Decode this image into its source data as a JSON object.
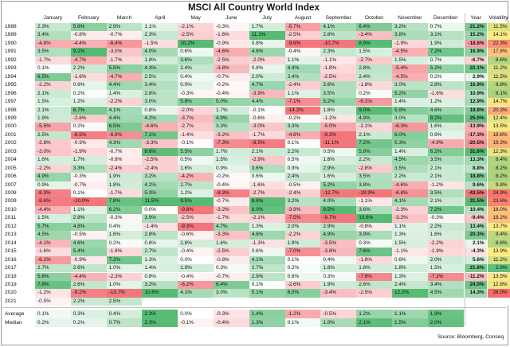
{
  "chart_data": {
    "type": "table",
    "title": "MSCI All Country World Index",
    "source": "Source: Bloomberg, Conseq",
    "month_columns": [
      "January",
      "February",
      "March",
      "April",
      "May",
      "June",
      "July",
      "August",
      "September",
      "October",
      "November",
      "December"
    ],
    "year_column": "Year",
    "volatility_column": "Volatility",
    "rows": [
      {
        "year": "1988",
        "months": [
          "2.3%",
          "5.6%",
          "2.9%",
          "1.1%",
          "-2.1%",
          "-0.3%",
          "1.7%",
          "-5.7%",
          "4.1%",
          "6.4%",
          "3.2%",
          "0.7%"
        ],
        "total": "21.2%",
        "vol": "11.5%"
      },
      {
        "year": "1989",
        "months": [
          "3.4%",
          "-0.8%",
          "-0.7%",
          "2.3%",
          "-2.5%",
          "-1.6%",
          "11.1%",
          "-2.5%",
          "2.8%",
          "-3.4%",
          "3.8%",
          "3.1%"
        ],
        "total": "15.2%",
        "vol": "14.1%"
      },
      {
        "year": "1990",
        "months": [
          "-4.8%",
          "-4.4%",
          "-6.4%",
          "-1.5%",
          "10.2%",
          "-0.9%",
          "0.8%",
          "-9.6%",
          "-10.7%",
          "8.9%",
          "-1.9%",
          "1.9%"
        ],
        "total": "-18.6%",
        "vol": "22.3%"
      },
      {
        "year": "1991",
        "months": [
          "3.5%",
          "9.2%",
          "-3.0%",
          "4.0%",
          "0.6%",
          "-4.6%",
          "4.6%",
          "-0.4%",
          "2.3%",
          "1.5%",
          "-4.5%",
          "7.2%"
        ],
        "total": "16.9%",
        "vol": "17.8%"
      },
      {
        "year": "1992",
        "months": [
          "-1.7%",
          "-4.7%",
          "-1.7%",
          "1.8%",
          "3.6%",
          "-2.5%",
          "-2.0%",
          "1.1%",
          "-1.1%",
          "-2.7%",
          "1.5%",
          "0.7%"
        ],
        "total": "-6.7%",
        "vol": "8.6%"
      },
      {
        "year": "1993",
        "months": [
          "0.1%",
          "2.2%",
          "5.5%",
          "4.3%",
          "2.4%",
          "-3.8%",
          "0.8%",
          "4.4%",
          "-1.8%",
          "2.8%",
          "-5.4%",
          "5.2%"
        ],
        "total": "22.1%",
        "vol": "11.2%"
      },
      {
        "year": "1994",
        "months": [
          "6.5%",
          "-1.6%",
          "-4.7%",
          "2.5%",
          "0.4%",
          "-0.7%",
          "2.0%",
          "3.4%",
          "-2.5%",
          "2.4%",
          "-4.5%",
          "0.2%"
        ],
        "total": "2.9%",
        "vol": "11.5%"
      },
      {
        "year": "1995",
        "months": [
          "-2.2%",
          "0.9%",
          "4.4%",
          "3.4%",
          "0.9%",
          "-0.2%",
          "4.7%",
          "-2.4%",
          "3.6%",
          "-1.8%",
          "3.0%",
          "2.8%"
        ],
        "total": "16.9%",
        "vol": "8.8%"
      },
      {
        "year": "1996",
        "months": [
          "2.1%",
          "0.2%",
          "1.4%",
          "2.8%",
          "-0.3%",
          "-0.4%",
          "-3.9%",
          "1.1%",
          "3.5%",
          "0.2%",
          "5.2%",
          "-1.6%"
        ],
        "total": "10.9%",
        "vol": "8.1%"
      },
      {
        "year": "1997",
        "months": [
          "1.5%",
          "1.2%",
          "-2.2%",
          "3.0%",
          "5.8%",
          "5.0%",
          "4.4%",
          "-7.1%",
          "5.2%",
          "-6.1%",
          "1.4%",
          "1.2%"
        ],
        "total": "12.9%",
        "vol": "14.7%"
      },
      {
        "year": "1998",
        "months": [
          "2.1%",
          "6.7%",
          "4.1%",
          "0.8%",
          "-2.0%",
          "1.7%",
          "-0.1%",
          "-14.2%",
          "1.8%",
          "9.0%",
          "5.9%",
          "4.6%"
        ],
        "total": "19.8%",
        "vol": "20.3%"
      },
      {
        "year": "1999",
        "months": [
          "1.9%",
          "-2.6%",
          "4.4%",
          "4.2%",
          "-3.7%",
          "4.9%",
          "-0.6%",
          "-0.2%",
          "-1.2%",
          "4.9%",
          "3.0%",
          "8.2%"
        ],
        "total": "25.0%",
        "vol": "12.4%"
      },
      {
        "year": "2000",
        "months": [
          "-5.5%",
          "0.2%",
          "6.5%",
          "-4.6%",
          "-2.7%",
          "3.3%",
          "-3.0%",
          "3.3%",
          "-5.0%",
          "-2.1%",
          "-6.3%",
          "1.6%"
        ],
        "total": "-13.9%",
        "vol": "13.5%"
      },
      {
        "year": "2001",
        "months": [
          "2.5%",
          "-8.5%",
          "-6.9%",
          "7.1%",
          "-1.4%",
          "-3.2%",
          "-1.7%",
          "-4.8%",
          "-9.3%",
          "2.1%",
          "6.0%",
          "0.9%"
        ],
        "total": "-17.3%",
        "vol": "18.6%"
      },
      {
        "year": "2002",
        "months": [
          "-2.8%",
          "-0.9%",
          "4.3%",
          "-3.3%",
          "-0.1%",
          "-7.3%",
          "-8.5%",
          "0.1%",
          "-11.1%",
          "7.2%",
          "5.3%",
          "-4.9%"
        ],
        "total": "-20.5%",
        "vol": "19.3%"
      },
      {
        "year": "2003",
        "months": [
          "-3.0%",
          "-1.9%",
          "-0.7%",
          "8.6%",
          "5.5%",
          "1.7%",
          "2.1%",
          "2.2%",
          "0.5%",
          "5.9%",
          "1.4%",
          "6.2%"
        ],
        "total": "31.6%",
        "vol": "12.3%"
      },
      {
        "year": "2004",
        "months": [
          "1.6%",
          "1.7%",
          "-0.8%",
          "-2.5%",
          "0.5%",
          "1.5%",
          "-2.9%",
          "0.5%",
          "1.6%",
          "2.2%",
          "4.5%",
          "3.5%"
        ],
        "total": "13.3%",
        "vol": "8.4%"
      },
      {
        "year": "2005",
        "months": [
          "-2.2%",
          "3.3%",
          "-2.4%",
          "-2.4%",
          "1.6%",
          "0.9%",
          "3.6%",
          "0.9%",
          "2.9%",
          "-2.8%",
          "3.5%",
          "2.1%"
        ],
        "total": "8.8%",
        "vol": "8.2%"
      },
      {
        "year": "2006",
        "months": [
          "4.9%",
          "-0.3%",
          "1.9%",
          "3.2%",
          "-4.2%",
          "-0.2%",
          "0.6%",
          "2.4%",
          "1.6%",
          "3.5%",
          "2.2%",
          "2.1%"
        ],
        "total": "18.8%",
        "vol": "8.2%"
      },
      {
        "year": "2007",
        "months": [
          "0.9%",
          "-0.7%",
          "1.8%",
          "4.2%",
          "2.7%",
          "-0.4%",
          "-1.6%",
          "-0.5%",
          "5.2%",
          "3.8%",
          "-4.6%",
          "-1.2%"
        ],
        "total": "9.6%",
        "vol": "9.8%"
      },
      {
        "year": "2008",
        "months": [
          "-8.3%",
          "0.1%",
          "-1.7%",
          "5.3%",
          "1.2%",
          "-8.3%",
          "-2.7%",
          "-2.4%",
          "-12.7%",
          "-19.9%",
          "-6.8%",
          "3.5%"
        ],
        "total": "-43.5%",
        "vol": "24.9%"
      },
      {
        "year": "2009",
        "months": [
          "-8.6%",
          "-10.0%",
          "7.8%",
          "11.5%",
          "9.5%",
          "-0.7%",
          "8.8%",
          "3.2%",
          "4.0%",
          "-1.1%",
          "4.1%",
          "2.1%"
        ],
        "total": "31.5%",
        "vol": "23.6%"
      },
      {
        "year": "2010",
        "months": [
          "-4.4%",
          "1.1%",
          "6.2%",
          "0.0%",
          "-9.8%",
          "-3.2%",
          "8.0%",
          "-3.9%",
          "9.5%",
          "3.6%",
          "-2.3%",
          "7.2%"
        ],
        "total": "10.4%",
        "vol": "18.0%"
      },
      {
        "year": "2011",
        "months": [
          "1.5%",
          "2.8%",
          "-0.3%",
          "3.9%",
          "-2.5%",
          "-1.7%",
          "-2.1%",
          "-7.5%",
          "-9.7%",
          "10.6%",
          "-3.2%",
          "-0.3%"
        ],
        "total": "-9.4%",
        "vol": "18.2%"
      },
      {
        "year": "2012",
        "months": [
          "5.7%",
          "4.8%",
          "0.4%",
          "-1.4%",
          "-9.3%",
          "4.7%",
          "1.3%",
          "2.0%",
          "2.9%",
          "-0.8%",
          "1.1%",
          "2.2%"
        ],
        "total": "13.4%",
        "vol": "13.7%"
      },
      {
        "year": "2013",
        "months": [
          "4.5%",
          "-0.5%",
          "1.6%",
          "2.8%",
          "-0.6%",
          "-3.3%",
          "4.6%",
          "-2.2%",
          "4.9%",
          "3.9%",
          "1.3%",
          "1.6%"
        ],
        "total": "20.3%",
        "vol": "9.4%"
      },
      {
        "year": "2014",
        "months": [
          "-4.1%",
          "4.6%",
          "0.2%",
          "0.8%",
          "1.8%",
          "1.6%",
          "-1.3%",
          "1.9%",
          "-3.5%",
          "0.3%",
          "1.5%",
          "-2.2%"
        ],
        "total": "2.1%",
        "vol": "8.6%"
      },
      {
        "year": "2015",
        "months": [
          "-1.6%",
          "5.4%",
          "-1.8%",
          "2.7%",
          "-0.4%",
          "-2.5%",
          "0.6%",
          "-7.0%",
          "-3.8%",
          "7.6%",
          "-1.1%",
          "-1.9%"
        ],
        "total": "-4.3%",
        "vol": "13.9%"
      },
      {
        "year": "2016",
        "months": [
          "-6.1%",
          "-0.9%",
          "7.2%",
          "1.3%",
          "0.0%",
          "-0.8%",
          "4.1%",
          "0.1%",
          "0.4%",
          "-1.8%",
          "0.6%",
          "2.0%"
        ],
        "total": "5.6%",
        "vol": "11.2%"
      },
      {
        "year": "2017",
        "months": [
          "2.7%",
          "2.6%",
          "1.0%",
          "1.4%",
          "1.9%",
          "0.3%",
          "2.7%",
          "0.2%",
          "1.8%",
          "1.8%",
          "1.8%",
          "1.5%"
        ],
        "total": "21.6%",
        "vol": "2.9%"
      },
      {
        "year": "2018",
        "months": [
          "5.6%",
          "-4.4%",
          "-2.3%",
          "0.8%",
          "-0.4%",
          "-0.7%",
          "2.9%",
          "0.6%",
          "0.3%",
          "-7.6%",
          "1.3%",
          "-7.2%"
        ],
        "total": "-11.2%",
        "vol": "13.5%"
      },
      {
        "year": "2019",
        "months": [
          "7.8%",
          "2.6%",
          "1.0%",
          "3.2%",
          "-6.2%",
          "6.4%",
          "0.1%",
          "-2.6%",
          "1.9%",
          "2.6%",
          "2.4%",
          "3.4%"
        ],
        "total": "24.0%",
        "vol": "12.8%"
      },
      {
        "year": "2020",
        "months": [
          "-1.2%",
          "-8.2%",
          "-13.7%",
          "10.6%",
          "4.1%",
          "3.0%",
          "5.1%",
          "6.0%",
          "-3.4%",
          "-2.5%",
          "12.2%",
          "4.5%"
        ],
        "total": "14.3%",
        "vol": "26.0%"
      },
      {
        "year": "2021",
        "months": [
          "-0.5%",
          "2.2%",
          "2.5%",
          "",
          "",
          "",
          "",
          "",
          "",
          "",
          "",
          ""
        ],
        "total": "",
        "vol": ""
      }
    ],
    "average": {
      "label": "Average",
      "months": [
        "0.1%",
        "0.3%",
        "0.4%",
        "2.3%",
        "0.0%",
        "-0.3%",
        "1.4%",
        "-1.2%",
        "-0.5%",
        "1.2%",
        "1.1%",
        "1.9%"
      ]
    },
    "median": {
      "label": "Median",
      "months": [
        "0.2%",
        "0.2%",
        "0.7%",
        "2.3%",
        "-0.1%",
        "-0.4%",
        "1.3%",
        "0.1%",
        "1.0%",
        "2.1%",
        "1.5%",
        "2.0%"
      ]
    }
  },
  "colors": {
    "pos_strong": "#57bb74",
    "pos_light": "#ffffff",
    "neg_strong": "#f3767c",
    "neg_light": "#ffffff",
    "vol_low": "#63be7b",
    "vol_mid": "#ffeb84",
    "vol_high": "#f8696b",
    "separator": "#bfbfbf"
  }
}
